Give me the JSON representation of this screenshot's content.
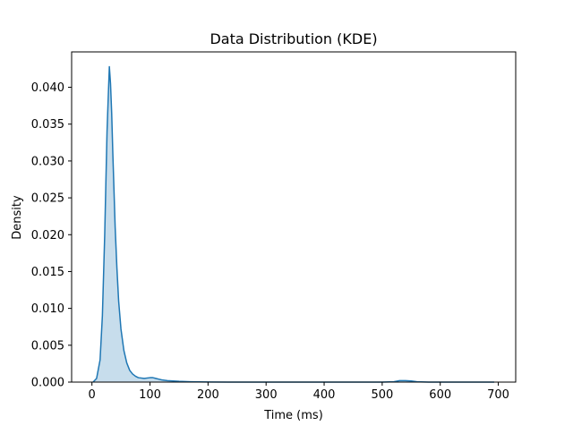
{
  "chart_data": {
    "type": "area",
    "title": "Data Distribution (KDE)",
    "xlabel": "Time (ms)",
    "ylabel": "Density",
    "xlim": [
      -35,
      730
    ],
    "ylim": [
      0,
      0.0448
    ],
    "xticks": [
      0,
      100,
      200,
      300,
      400,
      500,
      600,
      700
    ],
    "xtick_labels": [
      "0",
      "100",
      "200",
      "300",
      "400",
      "500",
      "600",
      "700"
    ],
    "yticks": [
      0,
      0.005,
      0.01,
      0.015,
      0.02,
      0.025,
      0.03,
      0.035,
      0.04
    ],
    "ytick_labels": [
      "0.000",
      "0.005",
      "0.010",
      "0.015",
      "0.020",
      "0.025",
      "0.030",
      "0.035",
      "0.040"
    ],
    "grid": false,
    "series": [
      {
        "color": "#1f77b4",
        "fill_color": "#1f77b4",
        "fill_opacity": 0.25,
        "x": [
          2,
          8,
          14,
          18,
          22,
          24,
          26,
          28,
          30,
          32,
          34,
          36,
          38,
          40,
          43,
          46,
          50,
          55,
          60,
          65,
          70,
          75,
          80,
          90,
          100,
          105,
          110,
          115,
          120,
          130,
          140,
          150,
          170,
          200,
          250,
          300,
          400,
          500,
          520,
          530,
          540,
          550,
          560,
          580,
          600,
          650,
          693
        ],
        "y": [
          0.0,
          0.0005,
          0.003,
          0.009,
          0.02,
          0.027,
          0.034,
          0.0385,
          0.0428,
          0.0405,
          0.0365,
          0.031,
          0.026,
          0.021,
          0.0155,
          0.011,
          0.0072,
          0.0043,
          0.0026,
          0.0016,
          0.0011,
          0.0008,
          0.0006,
          0.0005,
          0.0006,
          0.0006,
          0.0005,
          0.0004,
          0.0003,
          0.0002,
          0.00015,
          0.0001,
          5e-05,
          2e-05,
          0.0,
          0.0,
          0.0,
          0.0,
          5e-05,
          0.0002,
          0.0002,
          0.00015,
          5e-05,
          0.0,
          0.0,
          0.0,
          0.0
        ]
      }
    ]
  }
}
